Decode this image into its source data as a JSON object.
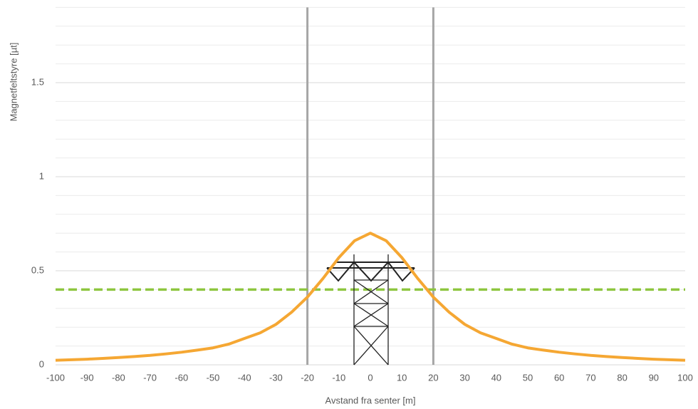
{
  "chart_data": {
    "type": "line",
    "x_label": "Avstand fra senter [m]",
    "y_label": "Magnetfeltstyre [µt]",
    "x": [
      -100,
      -95,
      -90,
      -85,
      -80,
      -75,
      -70,
      -65,
      -60,
      -55,
      -50,
      -45,
      -40,
      -35,
      -30,
      -25,
      -20,
      -15,
      -10,
      -5,
      0,
      5,
      10,
      15,
      20,
      25,
      30,
      35,
      40,
      45,
      50,
      55,
      60,
      65,
      70,
      75,
      80,
      85,
      90,
      95,
      100
    ],
    "series": [
      {
        "color": "#f5a733",
        "values": [
          0.024,
          0.027,
          0.03,
          0.034,
          0.039,
          0.044,
          0.05,
          0.058,
          0.067,
          0.078,
          0.09,
          0.11,
          0.14,
          0.17,
          0.215,
          0.28,
          0.36,
          0.46,
          0.57,
          0.66,
          0.7,
          0.66,
          0.57,
          0.46,
          0.36,
          0.28,
          0.215,
          0.17,
          0.14,
          0.11,
          0.09,
          0.078,
          0.067,
          0.058,
          0.05,
          0.044,
          0.039,
          0.034,
          0.03,
          0.027,
          0.024
        ]
      }
    ],
    "xlim": [
      -100,
      100
    ],
    "xticks": [
      -100,
      -90,
      -80,
      -70,
      -60,
      -50,
      -40,
      -30,
      -20,
      -10,
      0,
      10,
      20,
      30,
      40,
      50,
      60,
      70,
      80,
      90,
      100
    ],
    "ylim": [
      0,
      1.9
    ],
    "yticks": [
      0,
      0.5,
      1,
      1.5
    ],
    "minor_yticks": [
      0.1,
      0.2,
      0.3,
      0.4,
      0.6,
      0.7,
      0.8,
      0.9,
      1.1,
      1.2,
      1.3,
      1.4,
      1.6,
      1.7,
      1.8,
      1.9
    ],
    "grid": true,
    "hlines": [
      {
        "value": 0.4,
        "color": "#8dc63f"
      }
    ],
    "vlines": [
      {
        "value": -20,
        "color": "#a6a6a6"
      },
      {
        "value": 20,
        "color": "#a6a6a6"
      }
    ]
  }
}
